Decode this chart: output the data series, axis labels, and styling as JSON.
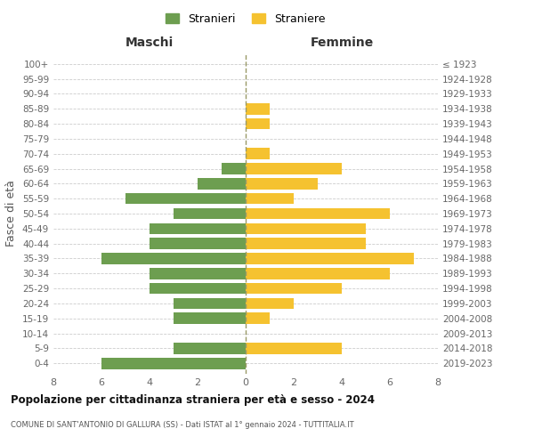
{
  "age_groups": [
    "0-4",
    "5-9",
    "10-14",
    "15-19",
    "20-24",
    "25-29",
    "30-34",
    "35-39",
    "40-44",
    "45-49",
    "50-54",
    "55-59",
    "60-64",
    "65-69",
    "70-74",
    "75-79",
    "80-84",
    "85-89",
    "90-94",
    "95-99",
    "100+"
  ],
  "birth_years": [
    "2019-2023",
    "2014-2018",
    "2009-2013",
    "2004-2008",
    "1999-2003",
    "1994-1998",
    "1989-1993",
    "1984-1988",
    "1979-1983",
    "1974-1978",
    "1969-1973",
    "1964-1968",
    "1959-1963",
    "1954-1958",
    "1949-1953",
    "1944-1948",
    "1939-1943",
    "1934-1938",
    "1929-1933",
    "1924-1928",
    "≤ 1923"
  ],
  "males": [
    6,
    3,
    0,
    3,
    3,
    4,
    4,
    6,
    4,
    4,
    3,
    5,
    2,
    1,
    0,
    0,
    0,
    0,
    0,
    0,
    0
  ],
  "females": [
    0,
    4,
    0,
    1,
    2,
    4,
    6,
    7,
    5,
    5,
    6,
    2,
    3,
    4,
    1,
    0,
    1,
    1,
    0,
    0,
    0
  ],
  "male_color": "#6d9e50",
  "female_color": "#f5c230",
  "male_label": "Stranieri",
  "female_label": "Straniere",
  "title": "Popolazione per cittadinanza straniera per età e sesso - 2024",
  "subtitle": "COMUNE DI SANT'ANTONIO DI GALLURA (SS) - Dati ISTAT al 1° gennaio 2024 - TUTTITALIA.IT",
  "ylabel_left": "Fasce di età",
  "header_left": "Maschi",
  "header_right": "Femmine",
  "xlim": 8,
  "background_color": "#ffffff",
  "grid_color": "#cccccc"
}
